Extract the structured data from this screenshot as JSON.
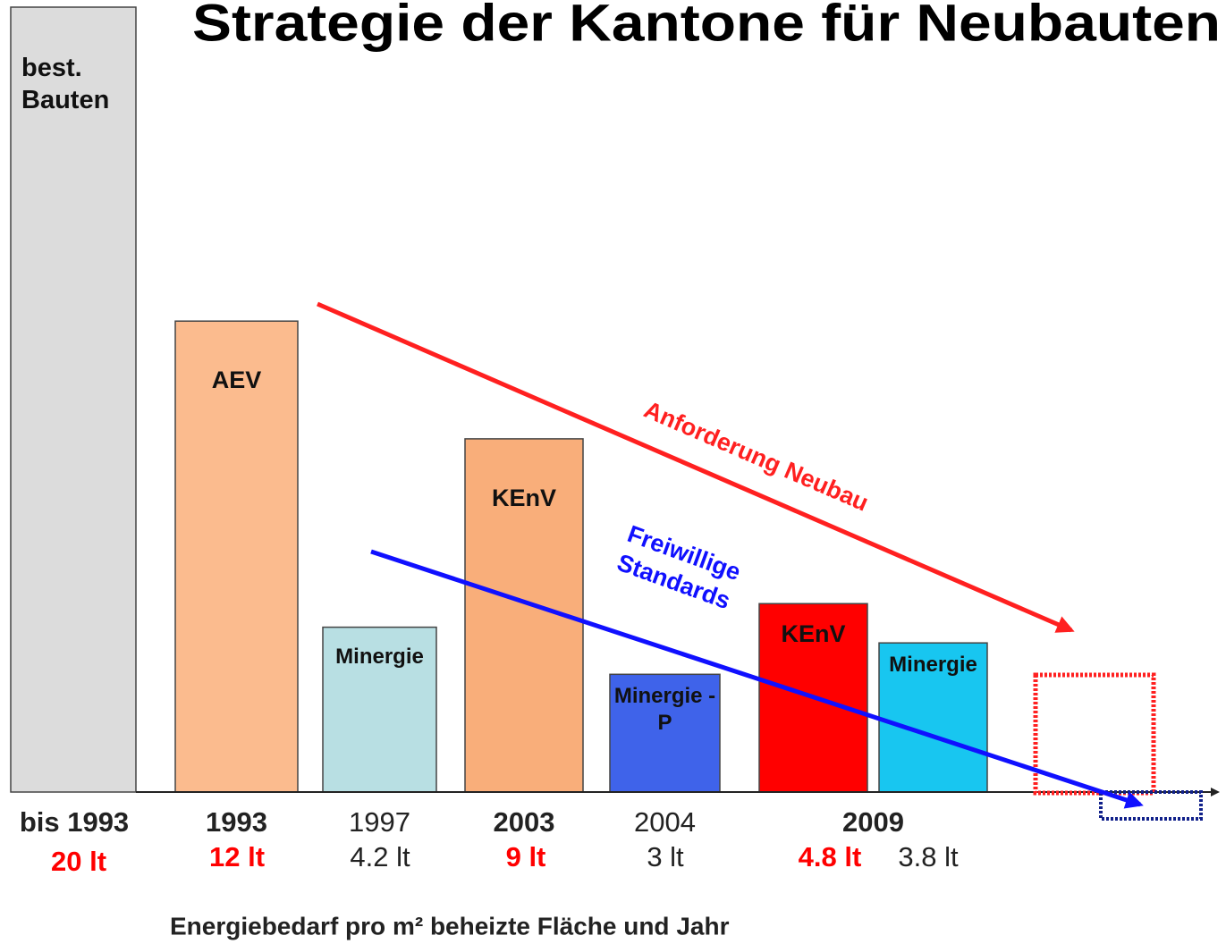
{
  "chart_data": {
    "type": "bar",
    "title": "Strategie der Kantone für Neubauten",
    "x_label": "Energiebedarf pro m² beheizte Fläche und Jahr",
    "categories": [
      "bis 1993",
      "1993",
      "1997",
      "2003",
      "2004",
      "2009",
      null
    ],
    "bar_labels": [
      "best. Bauten",
      "AEV",
      "Minergie",
      "KEnV",
      "Minergie - P",
      "KEnV",
      "Minergie"
    ],
    "values": [
      20,
      12,
      4.2,
      9,
      3,
      4.8,
      3.8
    ],
    "value_labels": [
      "20 lt",
      "12 lt",
      "4.2 lt",
      "9 lt",
      "3 lt",
      "4.8 lt",
      "3.8 lt"
    ],
    "colors": [
      "#dcdcdc",
      "#fbbb8e",
      "#b8dfe3",
      "#f9ae7a",
      "#3f63ea",
      "#ff0000",
      "#18c6f0"
    ],
    "value_label_colors": [
      "#ff0000",
      "#ff0000",
      "#222222",
      "#ff0000",
      "#222222",
      "#ff0000",
      "#222222"
    ],
    "ylim": [
      0,
      20
    ],
    "annotations": [
      "Anforderung Neubau",
      "Freiwillige Standards"
    ]
  }
}
